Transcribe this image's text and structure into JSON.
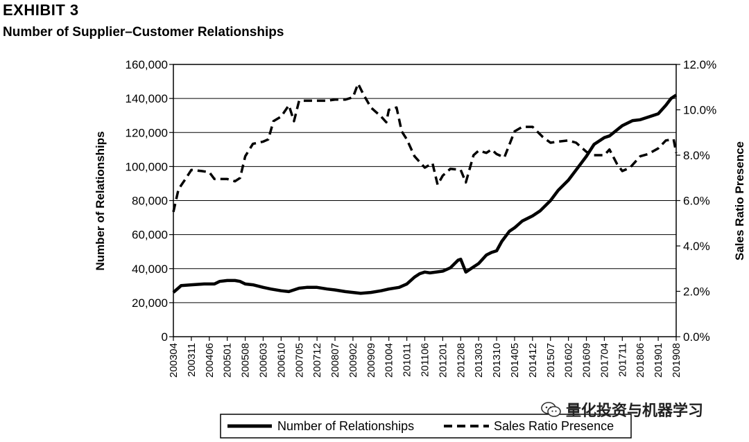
{
  "header": {
    "exhibit": "EXHIBIT 3",
    "subtitle": "Number of Supplier–Customer Relationships"
  },
  "watermark": {
    "text": "量化投资与机器学习",
    "icon": "wechat-icon"
  },
  "chart_data": {
    "type": "line",
    "title": "Number of Supplier–Customer Relationships",
    "ylabel": "Number of Relationships",
    "y2label": "Sales Ratio Presence",
    "ylim": [
      0,
      160000
    ],
    "y2lim": [
      0,
      0.12
    ],
    "yticks": [
      "0",
      "20,000",
      "40,000",
      "60,000",
      "80,000",
      "100,000",
      "120,000",
      "140,000",
      "160,000"
    ],
    "y2ticks": [
      "0.0%",
      "2.0%",
      "4.0%",
      "6.0%",
      "8.0%",
      "10.0%",
      "12.0%"
    ],
    "xticks": [
      "200304",
      "200311",
      "200406",
      "200501",
      "200508",
      "200603",
      "200610",
      "200705",
      "200712",
      "200807",
      "200902",
      "200909",
      "201004",
      "201011",
      "201106",
      "201201",
      "201208",
      "201303",
      "201310",
      "201405",
      "201412",
      "201507",
      "201602",
      "201609",
      "201704",
      "201711",
      "201806",
      "201901",
      "201908"
    ],
    "grid": "horizontal",
    "legend_position": "bottom",
    "series": [
      {
        "name": "Number of Relationships",
        "axis": "left",
        "style": "solid",
        "color": "#000000",
        "points": [
          [
            "200304",
            26000
          ],
          [
            "200307",
            30000
          ],
          [
            "200311",
            30500
          ],
          [
            "200404",
            31000
          ],
          [
            "200408",
            31000
          ],
          [
            "200410",
            32500
          ],
          [
            "200501",
            33000
          ],
          [
            "200504",
            33000
          ],
          [
            "200506",
            32500
          ],
          [
            "200508",
            31000
          ],
          [
            "200511",
            30500
          ],
          [
            "200603",
            29000
          ],
          [
            "200606",
            28000
          ],
          [
            "200610",
            27000
          ],
          [
            "200701",
            26500
          ],
          [
            "200705",
            28500
          ],
          [
            "200708",
            29000
          ],
          [
            "200712",
            29000
          ],
          [
            "200804",
            28000
          ],
          [
            "200807",
            27500
          ],
          [
            "200811",
            26500
          ],
          [
            "200902",
            26000
          ],
          [
            "200905",
            25500
          ],
          [
            "200909",
            26000
          ],
          [
            "201001",
            27000
          ],
          [
            "201004",
            28000
          ],
          [
            "201008",
            29000
          ],
          [
            "201011",
            31000
          ],
          [
            "201102",
            35000
          ],
          [
            "201104",
            37000
          ],
          [
            "201106",
            38000
          ],
          [
            "201108",
            37500
          ],
          [
            "201201",
            38500
          ],
          [
            "201204",
            40500
          ],
          [
            "201207",
            45000
          ],
          [
            "201208",
            45500
          ],
          [
            "201210",
            38000
          ],
          [
            "201301",
            41000
          ],
          [
            "201303",
            43000
          ],
          [
            "201306",
            48000
          ],
          [
            "201308",
            49500
          ],
          [
            "201310",
            50500
          ],
          [
            "201312",
            56000
          ],
          [
            "201403",
            62000
          ],
          [
            "201405",
            64000
          ],
          [
            "201408",
            68000
          ],
          [
            "201412",
            71000
          ],
          [
            "201503",
            74000
          ],
          [
            "201507",
            80000
          ],
          [
            "201510",
            86000
          ],
          [
            "201602",
            92000
          ],
          [
            "201605",
            98000
          ],
          [
            "201609",
            106000
          ],
          [
            "201612",
            113000
          ],
          [
            "201704",
            117000
          ],
          [
            "201706",
            118000
          ],
          [
            "201711",
            124000
          ],
          [
            "201803",
            127000
          ],
          [
            "201806",
            127500
          ],
          [
            "201809",
            129000
          ],
          [
            "201901",
            131000
          ],
          [
            "201904",
            136000
          ],
          [
            "201906",
            140000
          ],
          [
            "201908",
            142000
          ]
        ]
      },
      {
        "name": "Sales Ratio Presence",
        "axis": "right",
        "style": "dashed",
        "color": "#000000",
        "points": [
          [
            "200304",
            0.055
          ],
          [
            "200306",
            0.065
          ],
          [
            "200309",
            0.07
          ],
          [
            "200311",
            0.0735
          ],
          [
            "200403",
            0.073
          ],
          [
            "200406",
            0.0725
          ],
          [
            "200408",
            0.0695
          ],
          [
            "200501",
            0.0695
          ],
          [
            "200504",
            0.0685
          ],
          [
            "200506",
            0.07
          ],
          [
            "200508",
            0.0795
          ],
          [
            "200511",
            0.085
          ],
          [
            "200603",
            0.086
          ],
          [
            "200605",
            0.087
          ],
          [
            "200607",
            0.095
          ],
          [
            "200610",
            0.097
          ],
          [
            "200701",
            0.102
          ],
          [
            "200703",
            0.095
          ],
          [
            "200705",
            0.104
          ],
          [
            "200708",
            0.104
          ],
          [
            "200712",
            0.104
          ],
          [
            "200804",
            0.104
          ],
          [
            "200807",
            0.1045
          ],
          [
            "200811",
            0.1045
          ],
          [
            "200902",
            0.1055
          ],
          [
            "200904",
            0.1115
          ],
          [
            "200906",
            0.107
          ],
          [
            "200909",
            0.101
          ],
          [
            "201001",
            0.097
          ],
          [
            "201003",
            0.0945
          ],
          [
            "201004",
            0.1
          ],
          [
            "201007",
            0.101
          ],
          [
            "201009",
            0.0905
          ],
          [
            "201011",
            0.087
          ],
          [
            "201102",
            0.0795
          ],
          [
            "201106",
            0.0745
          ],
          [
            "201109",
            0.0765
          ],
          [
            "201111",
            0.067
          ],
          [
            "201201",
            0.071
          ],
          [
            "201204",
            0.074
          ],
          [
            "201208",
            0.0735
          ],
          [
            "201210",
            0.068
          ],
          [
            "201301",
            0.08
          ],
          [
            "201303",
            0.082
          ],
          [
            "201306",
            0.081
          ],
          [
            "201308",
            0.0825
          ],
          [
            "201310",
            0.0805
          ],
          [
            "201401",
            0.079
          ],
          [
            "201405",
            0.0905
          ],
          [
            "201408",
            0.0925
          ],
          [
            "201412",
            0.0925
          ],
          [
            "201504",
            0.088
          ],
          [
            "201507",
            0.0855
          ],
          [
            "201510",
            0.086
          ],
          [
            "201602",
            0.0865
          ],
          [
            "201605",
            0.0855
          ],
          [
            "201609",
            0.0815
          ],
          [
            "201612",
            0.08
          ],
          [
            "201704",
            0.08
          ],
          [
            "201706",
            0.0825
          ],
          [
            "201709",
            0.076
          ],
          [
            "201711",
            0.073
          ],
          [
            "201802",
            0.0745
          ],
          [
            "201806",
            0.0795
          ],
          [
            "201809",
            0.0805
          ],
          [
            "201901",
            0.083
          ],
          [
            "201904",
            0.0865
          ],
          [
            "201907",
            0.087
          ],
          [
            "201908",
            0.081
          ]
        ]
      }
    ]
  }
}
